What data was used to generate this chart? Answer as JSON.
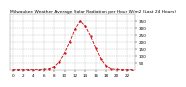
{
  "title": "Milwaukee Weather Average Solar Radiation per Hour W/m2 (Last 24 Hours)",
  "x_values": [
    0,
    1,
    2,
    3,
    4,
    5,
    6,
    7,
    8,
    9,
    10,
    11,
    12,
    13,
    14,
    15,
    16,
    17,
    18,
    19,
    20,
    21,
    22,
    23
  ],
  "y_values": [
    0,
    0,
    0,
    0,
    0,
    0,
    2,
    5,
    20,
    55,
    120,
    200,
    290,
    350,
    310,
    240,
    155,
    75,
    25,
    5,
    1,
    0,
    0,
    0
  ],
  "line_color": "#cc0000",
  "background_color": "#ffffff",
  "grid_color": "#bbbbbb",
  "ylim": [
    0,
    400
  ],
  "xlim": [
    -0.5,
    23.5
  ],
  "tick_fontsize": 3.0,
  "title_fontsize": 3.2
}
